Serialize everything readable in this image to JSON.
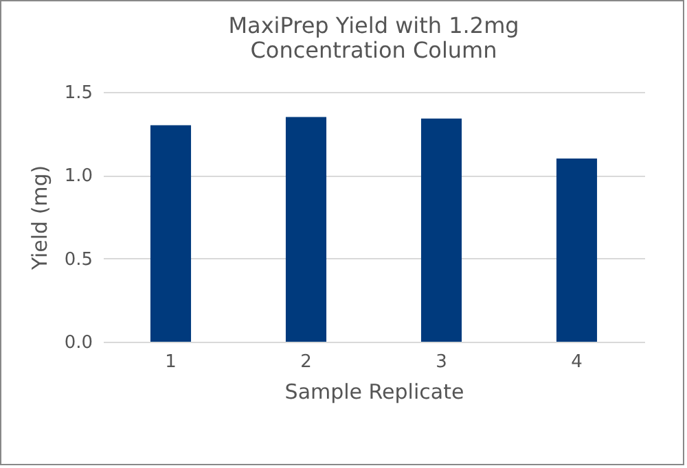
{
  "chart_data": {
    "type": "bar",
    "title": "MaxiPrep Yield with 1.2mg Concentration Column",
    "xlabel": "Sample Replicate",
    "ylabel": "Yield (mg)",
    "categories": [
      "1",
      "2",
      "3",
      "4"
    ],
    "values": [
      1.3,
      1.35,
      1.34,
      1.1
    ],
    "color": "#003a7d",
    "ylim": [
      0,
      1.5
    ],
    "yticks": [
      {
        "value": 0,
        "label": "0.0"
      },
      0.5,
      {
        "value": 1,
        "label": "1.0"
      },
      1.5
    ],
    "grid": "y"
  }
}
